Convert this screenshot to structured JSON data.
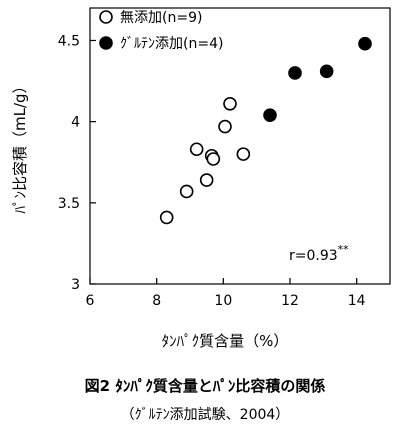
{
  "chart_data": {
    "type": "scatter",
    "title": "図2 ﾀﾝﾊﾟｸ質含量とﾊﾟﾝ比容積の関係",
    "subtitle": "（ｸﾞﾙﾃﾝ添加試験、2004）",
    "xlabel": "ﾀﾝﾊﾟｸ質含量（%）",
    "ylabel": "ﾊﾟﾝ比容積（mL/g）",
    "xlim": [
      6,
      15
    ],
    "ylim": [
      3,
      4.7
    ],
    "x_ticks": [
      "6",
      "8",
      "10",
      "12",
      "14"
    ],
    "y_ticks": [
      "3",
      "3.5",
      "4",
      "4.5"
    ],
    "grid": false,
    "legend_position": "top-left",
    "annotation": {
      "text": "r=0.93",
      "superscript": "**"
    },
    "series": [
      {
        "name": "無添加(n=9)",
        "marker": "open-circle",
        "points": [
          {
            "x": 8.3,
            "y": 3.41
          },
          {
            "x": 8.9,
            "y": 3.57
          },
          {
            "x": 9.2,
            "y": 3.83
          },
          {
            "x": 9.5,
            "y": 3.64
          },
          {
            "x": 9.65,
            "y": 3.79
          },
          {
            "x": 9.7,
            "y": 3.77
          },
          {
            "x": 10.05,
            "y": 3.97
          },
          {
            "x": 10.2,
            "y": 4.11
          },
          {
            "x": 10.6,
            "y": 3.8
          }
        ]
      },
      {
        "name": "ｸﾞﾙﾃﾝ添加(n=4)",
        "marker": "filled-circle",
        "points": [
          {
            "x": 11.4,
            "y": 4.04
          },
          {
            "x": 12.15,
            "y": 4.3
          },
          {
            "x": 13.1,
            "y": 4.31
          },
          {
            "x": 14.25,
            "y": 4.48
          }
        ]
      }
    ]
  }
}
